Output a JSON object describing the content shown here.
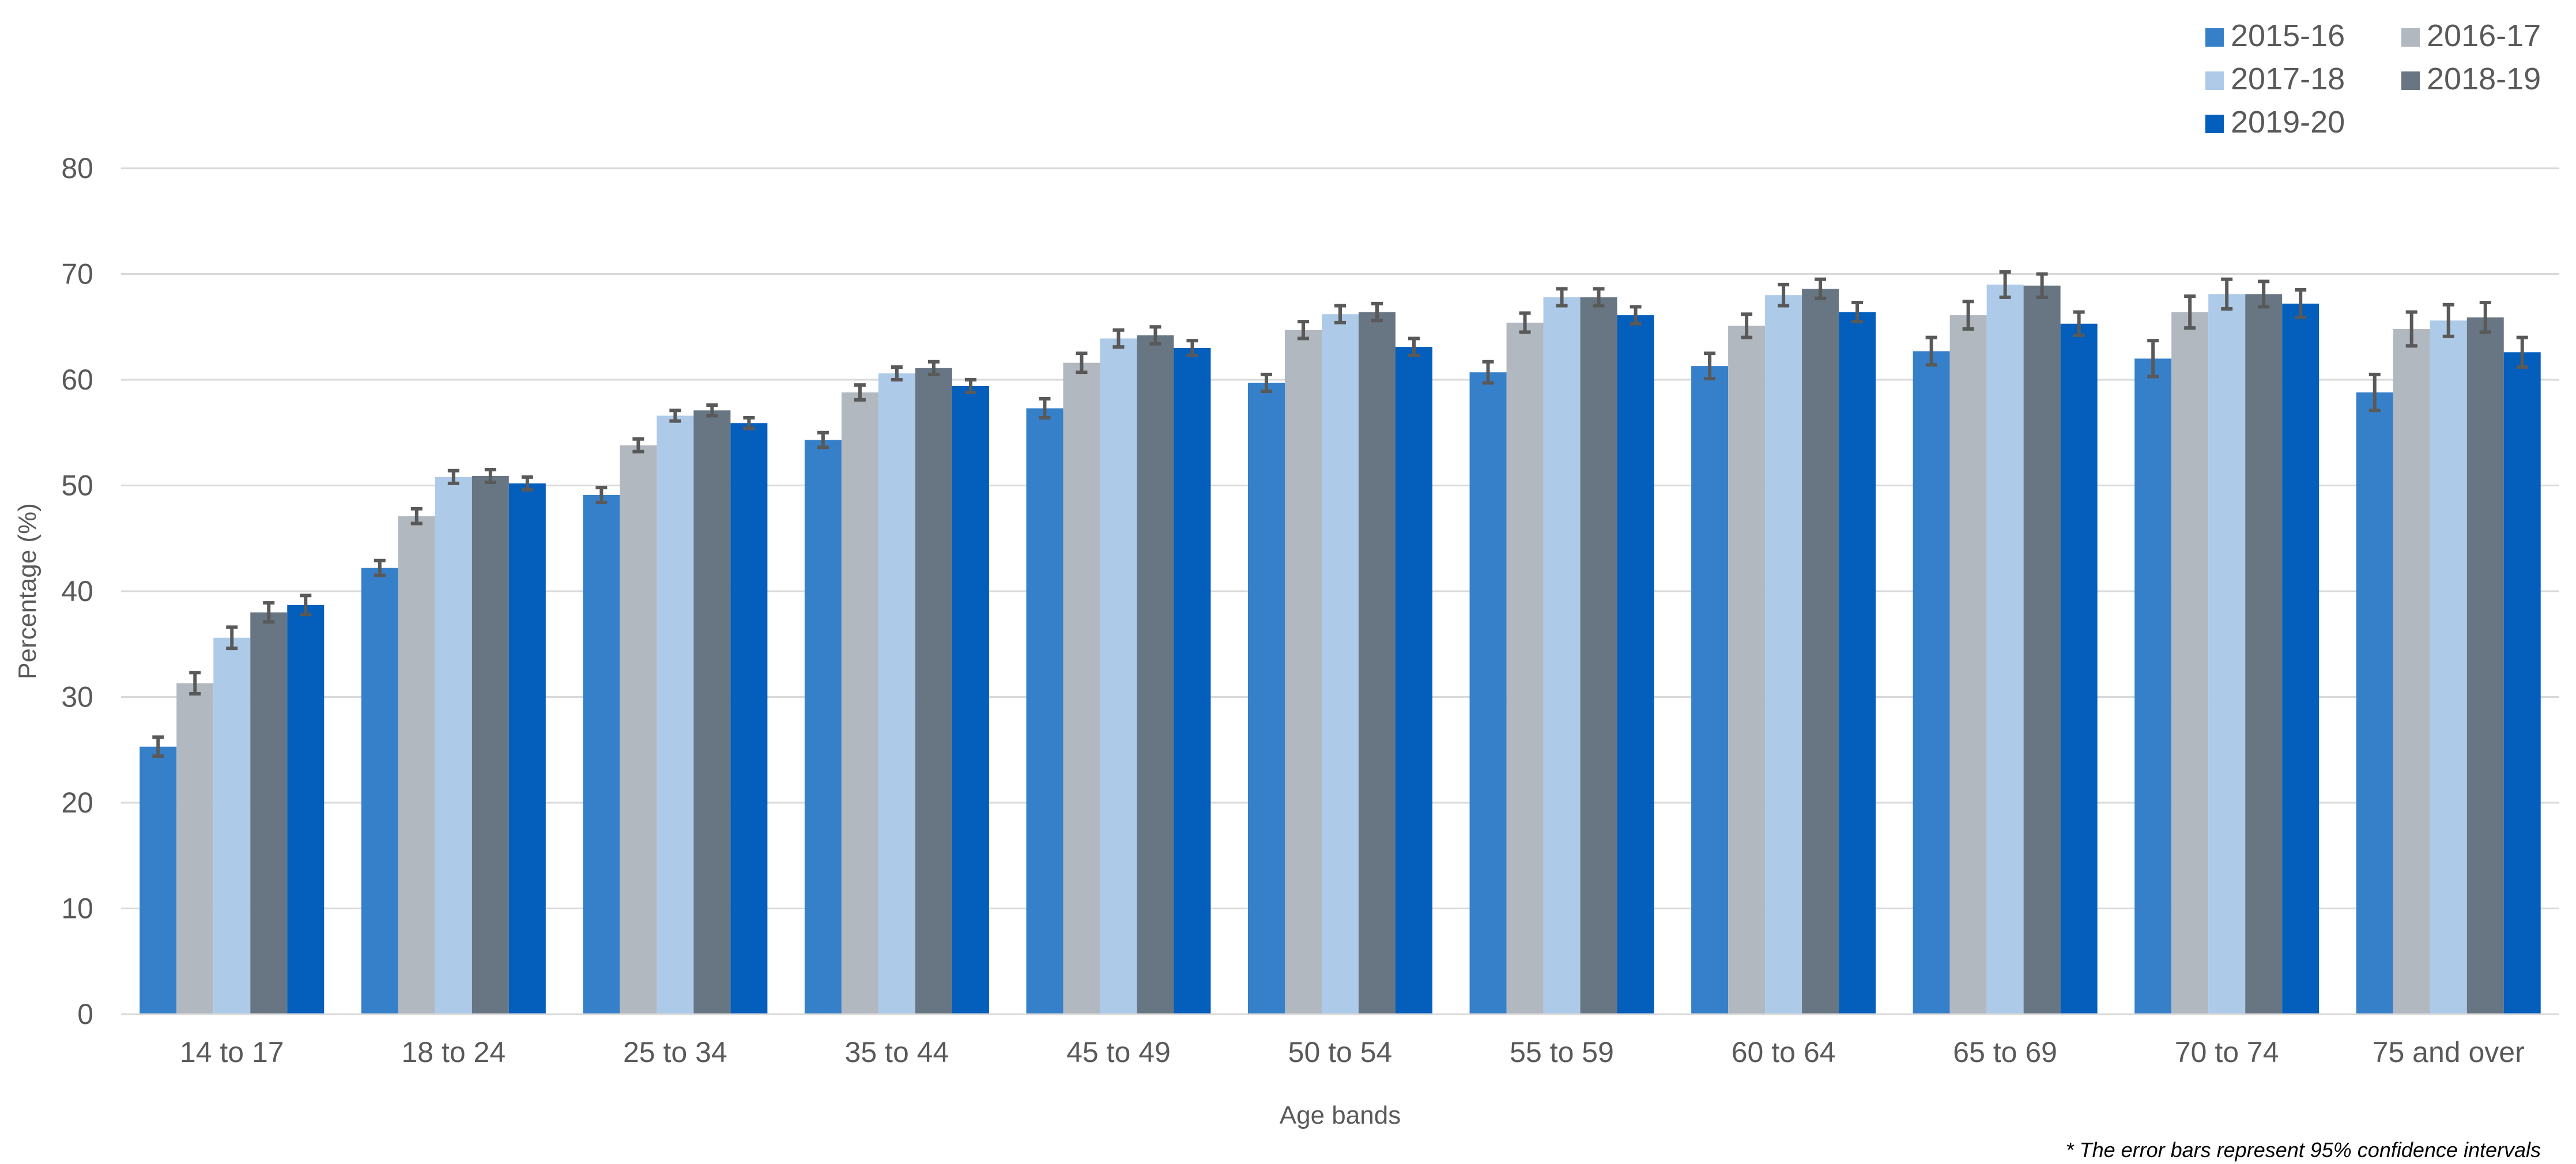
{
  "chart_data": {
    "type": "bar",
    "title": "",
    "xlabel": "Age bands",
    "ylabel": "Percentage (%)",
    "ylim": [
      0,
      80
    ],
    "yticks": [
      0,
      10,
      20,
      30,
      40,
      50,
      60,
      70,
      80
    ],
    "grid": true,
    "legend_position": "top-right",
    "error_bars": "95% confidence intervals",
    "footnote": "* The error bars represent 95%  confidence intervals",
    "categories": [
      "14 to 17",
      "18 to 24",
      "25 to 34",
      "35 to 44",
      "45 to 49",
      "50 to 54",
      "55 to 59",
      "60 to 64",
      "65 to 69",
      "70 to 74",
      "75 and over"
    ],
    "series": [
      {
        "name": "2015-16",
        "color": "#3680CA",
        "values": [
          25.3,
          42.2,
          49.1,
          54.3,
          57.3,
          59.7,
          60.7,
          61.3,
          62.7,
          62.0,
          58.8
        ],
        "errors": [
          0.9,
          0.7,
          0.7,
          0.7,
          0.9,
          0.8,
          1.0,
          1.2,
          1.3,
          1.7,
          1.7
        ]
      },
      {
        "name": "2016-17",
        "color": "#B1B8C0",
        "values": [
          31.3,
          47.1,
          53.8,
          58.8,
          61.6,
          64.7,
          65.4,
          65.1,
          66.1,
          66.4,
          64.8
        ],
        "errors": [
          1.0,
          0.7,
          0.6,
          0.7,
          0.9,
          0.8,
          0.9,
          1.1,
          1.3,
          1.5,
          1.6
        ]
      },
      {
        "name": "2017-18",
        "color": "#ADCAE8",
        "values": [
          35.6,
          50.8,
          56.6,
          60.6,
          63.9,
          66.2,
          67.8,
          68.0,
          69.0,
          68.1,
          65.6
        ],
        "errors": [
          1.0,
          0.6,
          0.5,
          0.6,
          0.8,
          0.8,
          0.8,
          1.0,
          1.2,
          1.4,
          1.5
        ]
      },
      {
        "name": "2018-19",
        "color": "#687683",
        "values": [
          38.0,
          50.9,
          57.1,
          61.1,
          64.2,
          66.4,
          67.8,
          68.6,
          68.9,
          68.1,
          65.9
        ],
        "errors": [
          0.9,
          0.6,
          0.5,
          0.6,
          0.8,
          0.8,
          0.8,
          0.9,
          1.1,
          1.2,
          1.4
        ]
      },
      {
        "name": "2019-20",
        "color": "#035EBC",
        "values": [
          38.7,
          50.2,
          55.9,
          59.4,
          63.0,
          63.1,
          66.1,
          66.4,
          65.3,
          67.2,
          62.6
        ],
        "errors": [
          0.9,
          0.6,
          0.5,
          0.6,
          0.7,
          0.8,
          0.8,
          0.9,
          1.1,
          1.3,
          1.4
        ]
      }
    ]
  }
}
